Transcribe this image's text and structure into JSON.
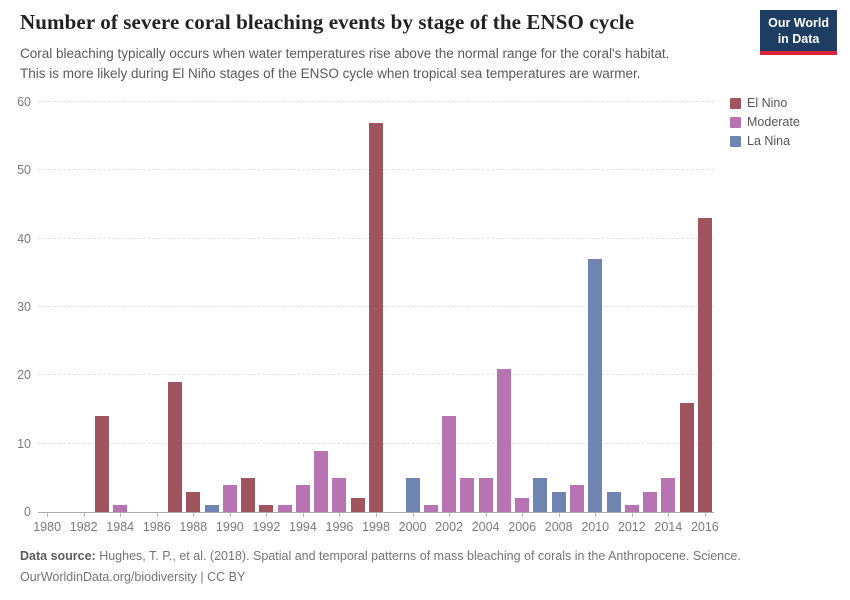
{
  "header": {
    "title": "Number of severe coral bleaching events by stage of the ENSO cycle",
    "logo": {
      "line1": "Our World",
      "line2": "in Data",
      "bg_color": "#1d3d63",
      "stripe_color": "#d7263d"
    }
  },
  "subtitle": [
    "Coral bleaching typically occurs when water temperatures rise above the normal range for the coral's habitat.",
    "This is more likely during El Niño stages of the ENSO cycle when tropical sea temperatures are warmer."
  ],
  "chart_data": {
    "type": "bar",
    "title": "Number of severe coral bleaching events by stage of the ENSO cycle",
    "xlabel": "",
    "ylabel": "",
    "ylim": [
      0,
      60
    ],
    "yticks": [
      0,
      10,
      20,
      30,
      40,
      50,
      60
    ],
    "grid": "dashed-horizontal",
    "x_label_every": 2,
    "years": [
      1980,
      1981,
      1982,
      1983,
      1984,
      1985,
      1986,
      1987,
      1988,
      1989,
      1990,
      1991,
      1992,
      1993,
      1994,
      1995,
      1996,
      1997,
      1998,
      1999,
      2000,
      2001,
      2002,
      2003,
      2004,
      2005,
      2006,
      2007,
      2008,
      2009,
      2010,
      2011,
      2012,
      2013,
      2014,
      2015,
      2016
    ],
    "values": [
      0,
      0,
      0,
      14,
      1,
      0,
      0,
      19,
      3,
      1,
      4,
      5,
      1,
      1,
      4,
      9,
      5,
      2,
      57,
      0,
      5,
      1,
      14,
      5,
      5,
      21,
      2,
      5,
      3,
      4,
      37,
      3,
      1,
      3,
      5,
      16,
      43
    ],
    "groups": [
      null,
      null,
      null,
      "El Nino",
      "Moderate",
      null,
      null,
      "El Nino",
      "El Nino",
      "La Nina",
      "Moderate",
      "El Nino",
      "El Nino",
      "Moderate",
      "Moderate",
      "Moderate",
      "Moderate",
      "El Nino",
      "El Nino",
      null,
      "La Nina",
      "Moderate",
      "Moderate",
      "Moderate",
      "Moderate",
      "Moderate",
      "Moderate",
      "La Nina",
      "La Nina",
      "Moderate",
      "La Nina",
      "La Nina",
      "Moderate",
      "Moderate",
      "Moderate",
      "El Nino",
      "El Nino"
    ],
    "legend": [
      {
        "label": "El Nino",
        "color": "#a0555e"
      },
      {
        "label": "Moderate",
        "color": "#b873b3"
      },
      {
        "label": "La Nina",
        "color": "#6f84b1"
      }
    ],
    "legend_position": "right"
  },
  "footer": {
    "datasource_label": "Data source:",
    "datasource_text": " Hughes, T. P., et al. (2018). Spatial and temporal patterns of mass bleaching of corals in the Anthropocene. Science.",
    "license_line": "OurWorldinData.org/biodiversity | CC BY"
  }
}
